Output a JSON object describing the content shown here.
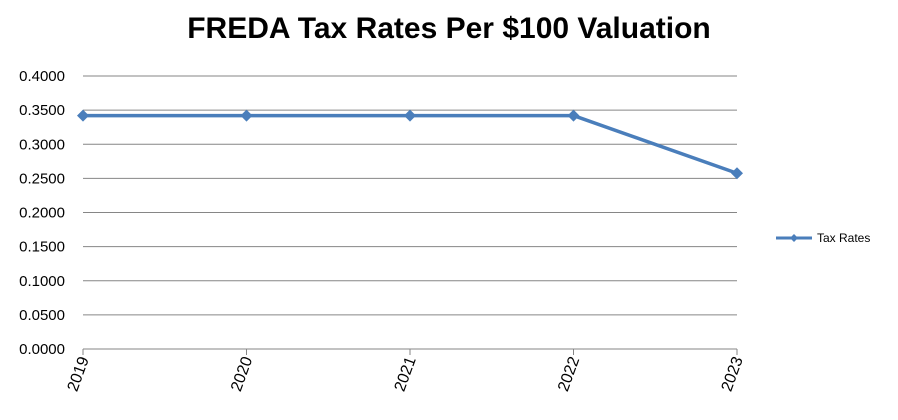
{
  "chart_data": {
    "type": "line",
    "title": "FREDA Tax Rates Per $100 Valuation",
    "xlabel": "",
    "ylabel": "",
    "categories": [
      "2019",
      "2020",
      "2021",
      "2022",
      "2023"
    ],
    "series": [
      {
        "name": "Tax Rates",
        "values": [
          0.342,
          0.342,
          0.342,
          0.342,
          0.2575
        ],
        "color": "#4a7ebb",
        "marker": "diamond"
      }
    ],
    "ylim": [
      0,
      0.4
    ],
    "yticks": [
      "0.0000",
      "0.0500",
      "0.1000",
      "0.1500",
      "0.2000",
      "0.2500",
      "0.3000",
      "0.3500",
      "0.4000"
    ],
    "grid": true,
    "legend_position": "right",
    "gridline_color": "#868686"
  }
}
